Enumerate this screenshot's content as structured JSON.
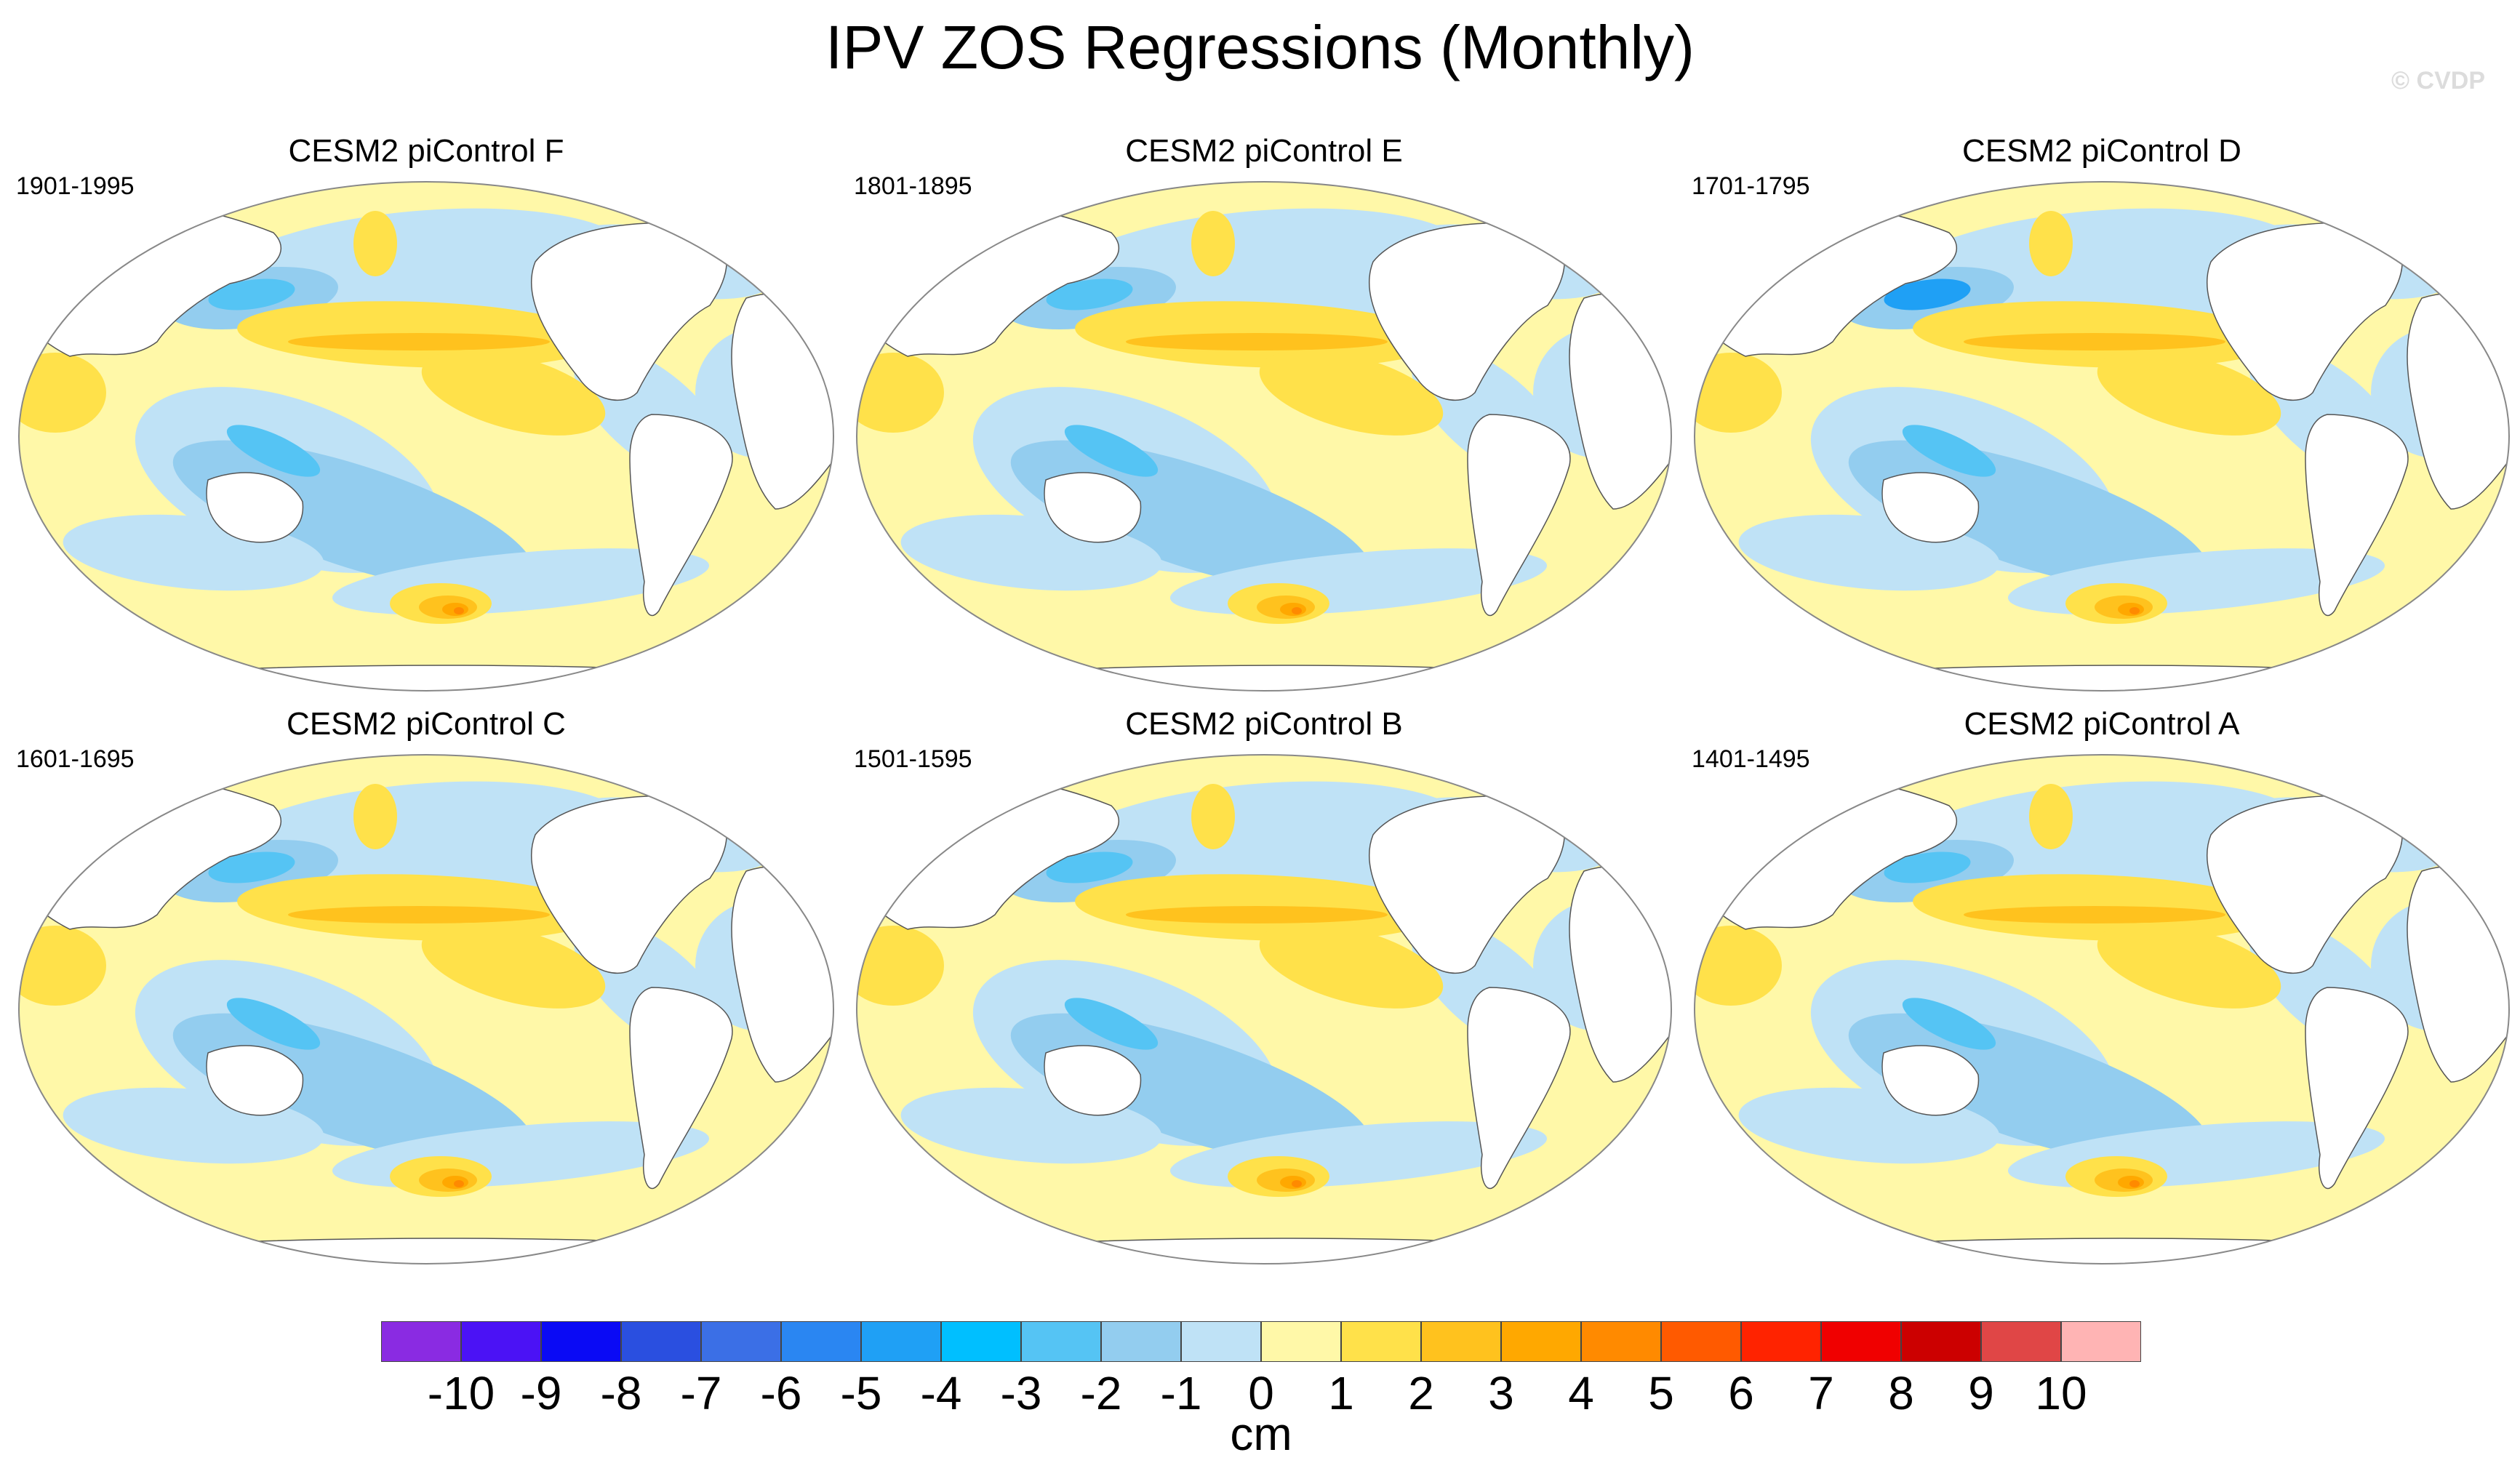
{
  "title": "IPV ZOS Regressions (Monthly)",
  "credit": "© CVDP",
  "panels": [
    {
      "title": "CESM2 piControl F",
      "period": "1901-1995"
    },
    {
      "title": "CESM2 piControl E",
      "period": "1801-1895"
    },
    {
      "title": "CESM2 piControl D",
      "period": "1701-1795"
    },
    {
      "title": "CESM2 piControl C",
      "period": "1601-1695"
    },
    {
      "title": "CESM2 piControl B",
      "period": "1501-1595"
    },
    {
      "title": "CESM2 piControl A",
      "period": "1401-1495"
    }
  ],
  "colorbar": {
    "units": "cm",
    "ticks": [
      "-10",
      "-9",
      "-8",
      "-7",
      "-6",
      "-5",
      "-4",
      "-3",
      "-2",
      "-1",
      "0",
      "1",
      "2",
      "3",
      "4",
      "5",
      "6",
      "7",
      "8",
      "9",
      "10"
    ],
    "colors": [
      "#8a2be2",
      "#4b12f5",
      "#0a0af5",
      "#2a4fe0",
      "#3b6fe6",
      "#2a86f2",
      "#1fa0f5",
      "#00bfff",
      "#55c4f4",
      "#93cdef",
      "#bfe2f6",
      "#fff8a8",
      "#ffe14a",
      "#ffc21e",
      "#ffa800",
      "#ff8a00",
      "#ff5a00",
      "#ff2300",
      "#f00000",
      "#cc0000",
      "#e04646",
      "#ffb4b4"
    ]
  },
  "map_colors": {
    "ocean_neutral": "#fff8a8",
    "neg1": "#bfe2f6",
    "neg2": "#93cdef",
    "neg3": "#55c4f4",
    "neg4": "#1fa0f5",
    "pos2": "#ffe14a",
    "pos3": "#ffc21e",
    "pos4": "#ffa800",
    "pos5": "#ff8a00",
    "land": "#ffffff",
    "outline": "#555555"
  }
}
